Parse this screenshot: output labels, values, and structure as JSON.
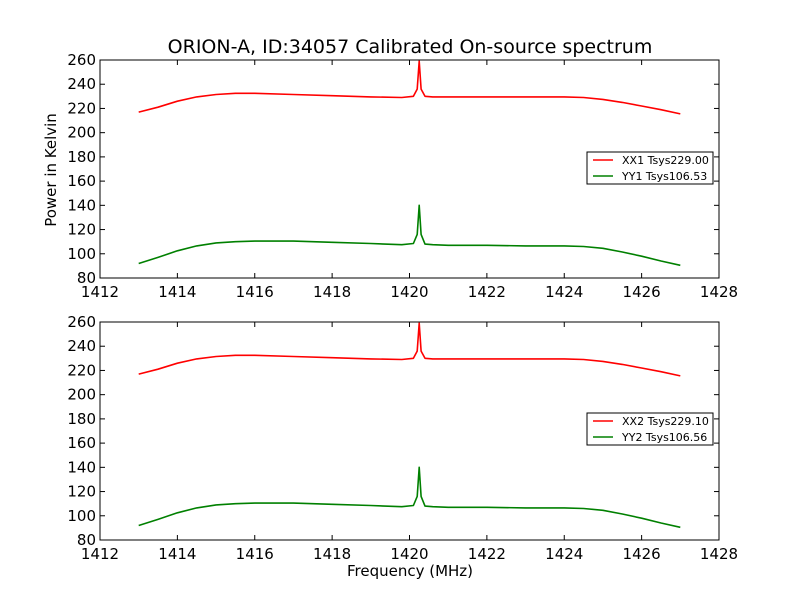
{
  "figure": {
    "title": "ORION-A, ID:34057 Calibrated On-source spectrum",
    "xlabel": "Frequency (MHz)",
    "ylabel": "Power in Kelvin"
  },
  "colors": {
    "xx": "#ff0000",
    "yy": "#008000"
  },
  "chart_data": [
    {
      "type": "line",
      "xlim": [
        1412,
        1428
      ],
      "ylim": [
        80,
        260
      ],
      "xticks": [
        1412,
        1414,
        1416,
        1418,
        1420,
        1422,
        1424,
        1426,
        1428
      ],
      "yticks": [
        80,
        100,
        120,
        140,
        160,
        180,
        200,
        220,
        240,
        260
      ],
      "grid": false,
      "legend_position": "right",
      "series": [
        {
          "name": "XX1 Tsys229.00",
          "color": "#ff0000",
          "x": [
            1413.0,
            1413.5,
            1414.0,
            1414.5,
            1415.0,
            1415.5,
            1416.0,
            1417.0,
            1418.0,
            1419.0,
            1419.8,
            1420.1,
            1420.2,
            1420.25,
            1420.3,
            1420.4,
            1420.6,
            1421.0,
            1422.0,
            1423.0,
            1424.0,
            1424.5,
            1425.0,
            1425.5,
            1426.0,
            1426.5,
            1427.0
          ],
          "y": [
            217,
            221,
            226,
            229.5,
            231.5,
            232.5,
            232.5,
            231.5,
            230.5,
            229.5,
            229,
            230,
            236,
            259,
            236,
            230,
            229.5,
            229.5,
            229.5,
            229.5,
            229.5,
            229,
            227.5,
            225,
            222,
            219,
            215.5
          ]
        },
        {
          "name": "YY1 Tsys106.53",
          "color": "#008000",
          "x": [
            1413.0,
            1413.5,
            1414.0,
            1414.5,
            1415.0,
            1415.5,
            1416.0,
            1417.0,
            1418.0,
            1419.0,
            1419.8,
            1420.1,
            1420.2,
            1420.25,
            1420.3,
            1420.4,
            1420.6,
            1421.0,
            1422.0,
            1423.0,
            1424.0,
            1424.5,
            1425.0,
            1425.5,
            1426.0,
            1426.5,
            1427.0
          ],
          "y": [
            92,
            97,
            102.5,
            106.5,
            109,
            110,
            110.5,
            110.5,
            109.5,
            108.5,
            107.5,
            108.5,
            116,
            140,
            116,
            108,
            107.5,
            107,
            107,
            106.5,
            106.5,
            106,
            104.5,
            101.5,
            98,
            94,
            90.5
          ]
        }
      ]
    },
    {
      "type": "line",
      "xlim": [
        1412,
        1428
      ],
      "ylim": [
        80,
        260
      ],
      "xticks": [
        1412,
        1414,
        1416,
        1418,
        1420,
        1422,
        1424,
        1426,
        1428
      ],
      "yticks": [
        80,
        100,
        120,
        140,
        160,
        180,
        200,
        220,
        240,
        260
      ],
      "grid": false,
      "legend_position": "right",
      "series": [
        {
          "name": "XX2 Tsys229.10",
          "color": "#ff0000",
          "x": [
            1413.0,
            1413.5,
            1414.0,
            1414.5,
            1415.0,
            1415.5,
            1416.0,
            1417.0,
            1418.0,
            1419.0,
            1419.8,
            1420.1,
            1420.2,
            1420.25,
            1420.3,
            1420.4,
            1420.6,
            1421.0,
            1422.0,
            1423.0,
            1424.0,
            1424.5,
            1425.0,
            1425.5,
            1426.0,
            1426.5,
            1427.0
          ],
          "y": [
            217,
            221,
            226,
            229.5,
            231.5,
            232.5,
            232.5,
            231.5,
            230.5,
            229.5,
            229,
            230,
            236,
            259,
            236,
            230,
            229.5,
            229.5,
            229.5,
            229.5,
            229.5,
            229,
            227.5,
            225,
            222,
            219,
            215.5
          ]
        },
        {
          "name": "YY2 Tsys106.56",
          "color": "#008000",
          "x": [
            1413.0,
            1413.5,
            1414.0,
            1414.5,
            1415.0,
            1415.5,
            1416.0,
            1417.0,
            1418.0,
            1419.0,
            1419.8,
            1420.1,
            1420.2,
            1420.25,
            1420.3,
            1420.4,
            1420.6,
            1421.0,
            1422.0,
            1423.0,
            1424.0,
            1424.5,
            1425.0,
            1425.5,
            1426.0,
            1426.5,
            1427.0
          ],
          "y": [
            92,
            97,
            102.5,
            106.5,
            109,
            110,
            110.5,
            110.5,
            109.5,
            108.5,
            107.5,
            108.5,
            116,
            140,
            116,
            108,
            107.5,
            107,
            107,
            106.5,
            106.5,
            106,
            104.5,
            101.5,
            98,
            94,
            90.5
          ]
        }
      ]
    }
  ]
}
